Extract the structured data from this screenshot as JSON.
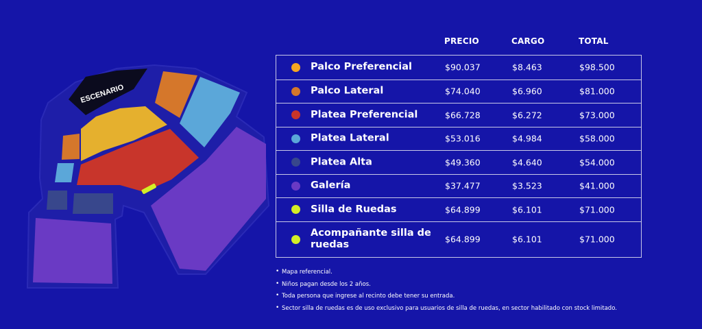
{
  "map": {
    "stage_label": "ESCENARIO",
    "colors": {
      "frame": "#1e1ea8",
      "stage": "#0b0b1e",
      "palco_preferencial": "#f5a623",
      "palco_lateral": "#d5772b",
      "platea_preferencial": "#c8352b",
      "platea_lateral": "#5ba7d9",
      "platea_alta": "#38478c",
      "galeria": "#6a3ac4",
      "silla_ruedas": "#d4ee26"
    }
  },
  "table": {
    "headers": {
      "precio": "PRECIO",
      "cargo": "CARGO",
      "total": "TOTAL"
    },
    "rows": [
      {
        "name": "Palco Preferencial",
        "color": "#f5a623",
        "precio": "$90.037",
        "cargo": "$8.463",
        "total": "$98.500"
      },
      {
        "name": "Palco Lateral",
        "color": "#d5772b",
        "precio": "$74.040",
        "cargo": "$6.960",
        "total": "$81.000"
      },
      {
        "name": "Platea Preferencial",
        "color": "#c8352b",
        "precio": "$66.728",
        "cargo": "$6.272",
        "total": "$73.000"
      },
      {
        "name": "Platea Lateral",
        "color": "#5ba7d9",
        "precio": "$53.016",
        "cargo": "$4.984",
        "total": "$58.000"
      },
      {
        "name": "Platea Alta",
        "color": "#38478c",
        "precio": "$49.360",
        "cargo": "$4.640",
        "total": "$54.000"
      },
      {
        "name": "Galería",
        "color": "#6a3ac4",
        "precio": "$37.477",
        "cargo": "$3.523",
        "total": "$41.000"
      },
      {
        "name": "Silla de Ruedas",
        "color": "#d4ee26",
        "precio": "$64.899",
        "cargo": "$6.101",
        "total": "$71.000"
      },
      {
        "name": "Acompañante silla de ruedas",
        "color": "#d4ee26",
        "precio": "$64.899",
        "cargo": "$6.101",
        "total": "$71.000"
      }
    ]
  },
  "notes": [
    "Mapa referencial.",
    "Niños pagan desde los 2 años.",
    "Toda persona que ingrese al recinto debe tener su entrada.",
    "Sector silla de ruedas es de uso exclusivo para usuarios de silla de ruedas, en sector habilitado con stock limitado."
  ]
}
